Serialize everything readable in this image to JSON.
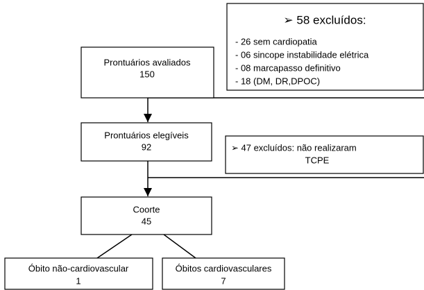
{
  "nodes": [
    {
      "label": "Prontuários avaliados",
      "value": "150"
    },
    {
      "label": "Prontuários elegíveis",
      "value": "92"
    },
    {
      "label": "Coorte",
      "value": "45"
    },
    {
      "label": "Óbito não-cardiovascular",
      "value": "1"
    },
    {
      "label": "Óbitos cardiovasculares",
      "value": "7"
    }
  ],
  "exclusions": [
    {
      "title": "➢ 58 excluídos:",
      "items": [
        "- 26 sem cardiopatia",
        "- 06 sincope instabilidade elétrica",
        "- 08 marcapasso definitivo",
        "- 18 (DM, DR,DPOC)"
      ]
    },
    {
      "lines": [
        "➢ 47 excluídos: não realizaram",
        "TCPE"
      ]
    }
  ]
}
